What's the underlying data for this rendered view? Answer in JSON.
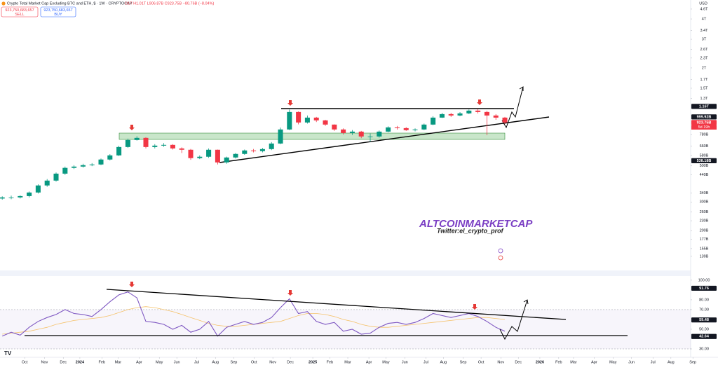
{
  "chart_data": [
    {
      "type": "candlestick",
      "title": "Crypto Total Market Cap Excluding BTC and ETH, $ · 1W · CRYPTOCAP",
      "subtitle": "O1T H1.01T L906.87B C923.75B −80.76B (−8.04%)",
      "trade_buttons": [
        {
          "price": "923,750,683,657",
          "label": "SELL"
        },
        {
          "price": "923,750,683,657",
          "label": "BUY"
        }
      ],
      "currency": "USD",
      "annotations": [
        "ALTCOINMARKETCAP",
        "Twitter:el_crypto_prof"
      ],
      "countdown": "5d 19h",
      "log_scale": true,
      "grid": false,
      "up_color": "#089981",
      "down_color": "#f23645",
      "xlim": [
        -0.5,
        153.4
      ],
      "ylim": [
        115,
        5230
      ],
      "yticks": [
        {
          "value": 4600,
          "label": "4.6T"
        },
        {
          "value": 4000,
          "label": "4T"
        },
        {
          "value": 3400,
          "label": "3.4T"
        },
        {
          "value": 3000,
          "label": "3T"
        },
        {
          "value": 2600,
          "label": "2.6T"
        },
        {
          "value": 2300,
          "label": "2.3T"
        },
        {
          "value": 2000,
          "label": "2T"
        },
        {
          "value": 1700,
          "label": "1.7T"
        },
        {
          "value": 1500,
          "label": "1.5T"
        },
        {
          "value": 1300,
          "label": "1.3T"
        },
        {
          "value": 780,
          "label": "780B"
        },
        {
          "value": 660,
          "label": "660B"
        },
        {
          "value": 580,
          "label": "580B"
        },
        {
          "value": 500,
          "label": "500B"
        },
        {
          "value": 440,
          "label": "440B"
        },
        {
          "value": 340,
          "label": "340B"
        },
        {
          "value": 300,
          "label": "300B"
        },
        {
          "value": 260,
          "label": "260B"
        },
        {
          "value": 230,
          "label": "230B"
        },
        {
          "value": 200,
          "label": "200B"
        },
        {
          "value": 177,
          "label": "177B"
        },
        {
          "value": 155,
          "label": "155B"
        },
        {
          "value": 139,
          "label": "139B"
        }
      ],
      "price_labels": [
        {
          "value": 1160,
          "label": "1.16T",
          "color": "#131722"
        },
        {
          "value": 999.92,
          "label": "999.92B",
          "color": "#131722"
        },
        {
          "value": 923.75,
          "label": "923.75B",
          "color": "#f23645"
        },
        {
          "value": 538.18,
          "label": "538.18B",
          "color": "#131722"
        }
      ],
      "x": [
        0,
        2,
        4,
        6,
        8,
        10,
        12,
        14,
        16,
        18,
        20,
        22,
        24,
        26,
        28,
        30,
        32,
        34,
        36,
        38,
        40,
        42,
        44,
        46,
        48,
        50,
        52,
        54,
        56,
        58,
        60,
        62,
        64,
        66,
        68,
        70,
        72,
        74,
        76,
        78,
        80,
        82,
        84,
        86,
        88,
        90,
        92,
        94,
        96,
        98,
        100,
        102,
        104,
        106,
        108,
        110,
        112
      ],
      "open": [
        315,
        320,
        320,
        326,
        343,
        379,
        406,
        448,
        486,
        495,
        505,
        510,
        547,
        580,
        653,
        721,
        743,
        653,
        666,
        673,
        640,
        628,
        558,
        569,
        628,
        525,
        563,
        592,
        622,
        616,
        634,
        686,
        837,
        1072,
        924,
        990,
        952,
        897,
        837,
        796,
        812,
        758,
        758,
        812,
        862,
        853,
        829,
        837,
        897,
        990,
        1040,
        1020,
        1051,
        1093,
        1072,
        1020,
        990
      ],
      "high": [
        325,
        328,
        330,
        348,
        385,
        415,
        455,
        495,
        505,
        515,
        520,
        555,
        590,
        665,
        735,
        760,
        750,
        680,
        690,
        680,
        650,
        635,
        580,
        640,
        630,
        570,
        600,
        630,
        635,
        645,
        700,
        860,
        1110,
        1080,
        1020,
        1000,
        960,
        900,
        850,
        830,
        820,
        790,
        825,
        875,
        880,
        865,
        850,
        910,
        1010,
        1060,
        1060,
        1070,
        1110,
        1120,
        1090,
        1040,
        1000
      ],
      "low": [
        310,
        312,
        315,
        320,
        338,
        372,
        400,
        440,
        478,
        488,
        498,
        505,
        540,
        575,
        645,
        715,
        640,
        640,
        655,
        630,
        600,
        545,
        550,
        560,
        510,
        515,
        555,
        585,
        605,
        605,
        625,
        680,
        830,
        900,
        910,
        930,
        880,
        820,
        780,
        775,
        740,
        705,
        745,
        805,
        835,
        820,
        815,
        830,
        890,
        985,
        1000,
        1010,
        1040,
        1050,
        773,
        960,
        905
      ],
      "close": [
        320,
        320,
        326,
        343,
        379,
        406,
        448,
        486,
        495,
        505,
        510,
        547,
        580,
        653,
        721,
        743,
        653,
        666,
        673,
        640,
        628,
        558,
        569,
        628,
        525,
        563,
        592,
        622,
        616,
        634,
        686,
        837,
        1072,
        924,
        990,
        952,
        897,
        837,
        796,
        812,
        758,
        758,
        812,
        862,
        853,
        829,
        837,
        897,
        990,
        1040,
        1020,
        1051,
        1093,
        1072,
        1020,
        990,
        924
      ]
    },
    {
      "type": "line",
      "xlim": [
        -0.5,
        153.4
      ],
      "ylim": [
        25,
        103.5
      ],
      "band": [
        30,
        70
      ],
      "yticks": [
        {
          "value": 100,
          "label": "100.00"
        },
        {
          "value": 80,
          "label": "80.00"
        },
        {
          "value": 70,
          "label": "70.00"
        },
        {
          "value": 50,
          "label": "50.00"
        },
        {
          "value": 30,
          "label": "30.00"
        }
      ],
      "price_labels": [
        {
          "value": 91.76,
          "label": "91.76",
          "color": "#131722"
        },
        {
          "value": 59.48,
          "label": "59.48",
          "color": "#131722"
        },
        {
          "value": 42.64,
          "label": "42.64",
          "color": "#131722"
        }
      ],
      "xticks": [
        {
          "value": 5,
          "label": "Oct"
        },
        {
          "value": 9.4,
          "label": "Nov"
        },
        {
          "value": 13.6,
          "label": "Dec"
        },
        {
          "value": 17.3,
          "label": "2024"
        },
        {
          "value": 22.2,
          "label": "Feb"
        },
        {
          "value": 25.8,
          "label": "Mar"
        },
        {
          "value": 30.5,
          "label": "Apr"
        },
        {
          "value": 35,
          "label": "May"
        },
        {
          "value": 38.9,
          "label": "Jun"
        },
        {
          "value": 43.3,
          "label": "Jul"
        },
        {
          "value": 47.5,
          "label": "Aug"
        },
        {
          "value": 51.6,
          "label": "Sep"
        },
        {
          "value": 56.1,
          "label": "Oct"
        },
        {
          "value": 60.3,
          "label": "Nov"
        },
        {
          "value": 64.2,
          "label": "Dec"
        },
        {
          "value": 69.2,
          "label": "2025"
        },
        {
          "value": 73,
          "label": "Feb"
        },
        {
          "value": 77,
          "label": "Mar"
        },
        {
          "value": 81.7,
          "label": "Apr"
        },
        {
          "value": 85.5,
          "label": "May"
        },
        {
          "value": 89.7,
          "label": "Jun"
        },
        {
          "value": 94.4,
          "label": "Jul"
        },
        {
          "value": 98.3,
          "label": "Aug"
        },
        {
          "value": 102.7,
          "label": "Sep"
        },
        {
          "value": 106.7,
          "label": "Oct"
        },
        {
          "value": 111.1,
          "label": "Nov"
        },
        {
          "value": 115,
          "label": "Dec"
        },
        {
          "value": 119.8,
          "label": "2026"
        },
        {
          "value": 124,
          "label": "Feb"
        },
        {
          "value": 127.3,
          "label": "Mar"
        },
        {
          "value": 131.9,
          "label": "Apr"
        },
        {
          "value": 136.1,
          "label": "May"
        },
        {
          "value": 140.2,
          "label": "Jun"
        },
        {
          "value": 145,
          "label": "Jul"
        },
        {
          "value": 149,
          "label": "Aug"
        },
        {
          "value": 153.9,
          "label": "Sep"
        }
      ],
      "x": [
        0,
        2,
        4,
        6,
        8,
        10,
        12,
        14,
        16,
        18,
        20,
        22,
        24,
        26,
        28,
        30,
        32,
        34,
        36,
        38,
        40,
        42,
        44,
        46,
        48,
        50,
        52,
        54,
        56,
        58,
        60,
        62,
        64,
        66,
        68,
        70,
        72,
        74,
        76,
        78,
        80,
        82,
        84,
        86,
        88,
        90,
        92,
        94,
        96,
        98,
        100,
        102,
        104,
        106,
        108,
        110,
        112
      ],
      "series": [
        {
          "color": "#f5c26b",
          "values": [
            45,
            46,
            47,
            48,
            50,
            52,
            55,
            57,
            59,
            60,
            61,
            62,
            64,
            67,
            70,
            72,
            73,
            72,
            70,
            68,
            65,
            62,
            59,
            56,
            54,
            53,
            53,
            54,
            55,
            56,
            57,
            58,
            61,
            64,
            66,
            66,
            65,
            63,
            60,
            58,
            55,
            53,
            52,
            52,
            53,
            54,
            55,
            56,
            57,
            58,
            59,
            60,
            61,
            62,
            62,
            61,
            60
          ]
        },
        {
          "color": "#7e57c2",
          "values": [
            43,
            47,
            44,
            52,
            58,
            62,
            65,
            70,
            66,
            65,
            63,
            70,
            78,
            85,
            88,
            82,
            58,
            57,
            55,
            50,
            54,
            47,
            50,
            58,
            43,
            52,
            55,
            58,
            55,
            57,
            62,
            72,
            81,
            66,
            68,
            58,
            55,
            57,
            48,
            50,
            45,
            46,
            52,
            56,
            57,
            55,
            57,
            61,
            66,
            64,
            62,
            64,
            66,
            63,
            58,
            52,
            48
          ]
        }
      ]
    }
  ]
}
